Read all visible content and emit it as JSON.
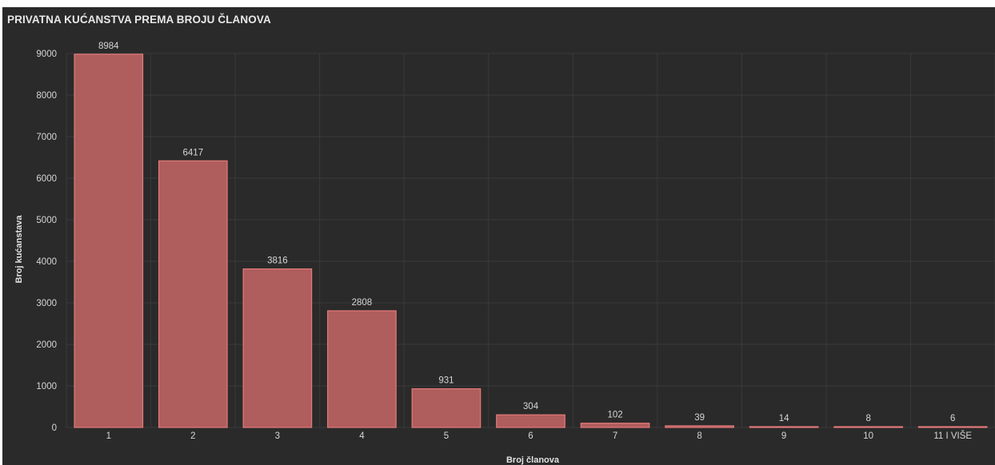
{
  "panel": {
    "title": "PRIVATNA KUĆANSTVA PREMA BROJU ČLANOVA"
  },
  "colors": {
    "background": "#2a2a2a",
    "bar_fill": "#b05d5d",
    "bar_stroke": "#e47a7a",
    "grid": "#3a3a3a",
    "text": "#d6d6d6"
  },
  "chart_data": {
    "type": "bar",
    "title": "PRIVATNA KUĆANSTVA PREMA BROJU ČLANOVA",
    "xlabel": "Broj članova",
    "ylabel": "Broj kućanstava",
    "categories": [
      "1",
      "2",
      "3",
      "4",
      "5",
      "6",
      "7",
      "8",
      "9",
      "10",
      "11 I VIŠE"
    ],
    "values": [
      8984,
      6417,
      3816,
      2808,
      931,
      304,
      102,
      39,
      14,
      8,
      6
    ],
    "ylim": [
      0,
      9000
    ],
    "yticks": [
      "0",
      "1000",
      "2000",
      "3000",
      "4000",
      "5000",
      "6000",
      "7000",
      "8000",
      "9000"
    ],
    "grid": true,
    "legend": "none",
    "data_labels": true
  }
}
